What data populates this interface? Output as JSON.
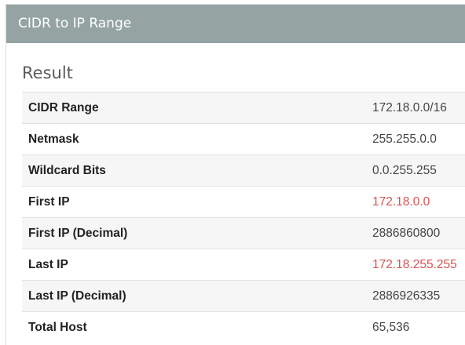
{
  "header": {
    "title": "CIDR to IP Range"
  },
  "result": {
    "title": "Result",
    "rows": [
      {
        "label": "CIDR Range",
        "value": "172.18.0.0/16"
      },
      {
        "label": "Netmask",
        "value": "255.255.0.0"
      },
      {
        "label": "Wildcard Bits",
        "value": "0.0.255.255"
      },
      {
        "label": "First IP",
        "value": "172.18.0.0"
      },
      {
        "label": "First IP (Decimal)",
        "value": "2886860800"
      },
      {
        "label": "Last IP",
        "value": "172.18.255.255"
      },
      {
        "label": "Last IP (Decimal)",
        "value": "2886926335"
      },
      {
        "label": "Total Host",
        "value": "65,536"
      }
    ]
  },
  "colors": {
    "header_bg": "#95a4a2",
    "highlight": "#d9534f"
  }
}
